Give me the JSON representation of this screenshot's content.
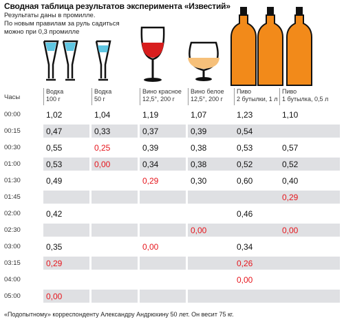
{
  "title": "Сводная таблица результатов эксперимента «Известий»",
  "subtitle_lines": [
    "Результаты даны в промилле.",
    "По новым правилам за руль садиться",
    "можно при 0,3 промилле"
  ],
  "time_header": "Часы",
  "columns": [
    {
      "name": "Водка",
      "detail": "100 г"
    },
    {
      "name": "Водка",
      "detail": "50 г"
    },
    {
      "name": "Вино красное",
      "detail": "12,5°, 200 г"
    },
    {
      "name": "Вино белое",
      "detail": "12,5°, 200 г"
    },
    {
      "name": "Пиво",
      "detail": "2 бутылки, 1 л"
    },
    {
      "name": "Пиво",
      "detail": "1 бутылка, 0,5 л"
    }
  ],
  "rows": [
    {
      "time": "00:00",
      "values": [
        "1,02",
        "1,04",
        "1,19",
        "1,07",
        "1,23",
        "1,10"
      ]
    },
    {
      "time": "00:15",
      "values": [
        "0,47",
        "0,33",
        "0,37",
        "0,39",
        "0,54",
        ""
      ]
    },
    {
      "time": "00:30",
      "values": [
        "0,55",
        "0,25",
        "0,39",
        "0,38",
        "0,53",
        "0,57"
      ]
    },
    {
      "time": "01:00",
      "values": [
        "0,53",
        "0,00",
        "0,34",
        "0,38",
        "0,52",
        "0,52"
      ]
    },
    {
      "time": "01:30",
      "values": [
        "0,49",
        "",
        "0,29",
        "0,30",
        "0,60",
        "0,40"
      ]
    },
    {
      "time": "01:45",
      "values": [
        "",
        "",
        "",
        "",
        "",
        "0,29"
      ]
    },
    {
      "time": "02:00",
      "values": [
        "0,42",
        "",
        "",
        "",
        "0,46",
        ""
      ]
    },
    {
      "time": "02:30",
      "values": [
        "",
        "",
        "",
        "0,00",
        "",
        "0,00"
      ]
    },
    {
      "time": "03:00",
      "values": [
        "0,35",
        "",
        "0,00",
        "",
        "0,34",
        ""
      ]
    },
    {
      "time": "03:15",
      "values": [
        "0,29",
        "",
        "",
        "",
        "0,26",
        ""
      ]
    },
    {
      "time": "04:00",
      "values": [
        "",
        "",
        "",
        "",
        "0,00",
        ""
      ]
    },
    {
      "time": "05:00",
      "values": [
        "0,00",
        "",
        "",
        "",
        "",
        ""
      ]
    }
  ],
  "highlight_rule": "values below 0,3 shown in red",
  "colors": {
    "red": "#e6151c",
    "shade": "#dfe0e3",
    "glass_blue": "#5fc6e2",
    "wine": "#d81e1e",
    "cognac": "#f6c07a",
    "beer": "#f28a1a"
  },
  "icons": [
    "vodka-glass-icon",
    "vodka-glass-icon",
    "vodka-glass-icon",
    "red-wine-glass-icon",
    "cognac-glass-icon",
    "beer-bottle-icon",
    "beer-bottle-icon",
    "beer-bottle-icon"
  ],
  "footer": "«Подопытному» корреспонденту Александру Андрюхину 50 лет. Он весит 75 кг."
}
